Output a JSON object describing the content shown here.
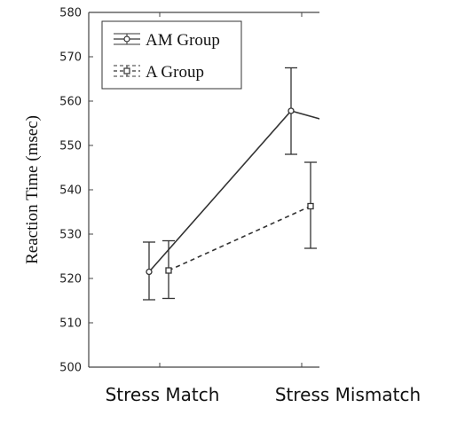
{
  "chart_data": {
    "type": "line",
    "title": "",
    "xlabel": "",
    "ylabel": "Reaction Time (msec)",
    "ylim": [
      500,
      580
    ],
    "yticks": [
      500,
      510,
      520,
      530,
      540,
      550,
      560,
      570,
      580
    ],
    "categories": [
      "Stress Match",
      "Stress Mismatch"
    ],
    "grid": false,
    "legend_position": "top-left",
    "series": [
      {
        "name": "AM Group",
        "marker": "circle",
        "line_style": "solid",
        "color": "#333333",
        "values": [
          521.5,
          557.8
        ],
        "error_low": [
          515.2,
          548.0
        ],
        "error_high": [
          528.2,
          567.5
        ]
      },
      {
        "name": "A Group",
        "marker": "square",
        "line_style": "dashed",
        "color": "#333333",
        "values": [
          521.8,
          536.3
        ],
        "error_low": [
          515.5,
          526.8
        ],
        "error_high": [
          528.5,
          546.2
        ]
      }
    ]
  }
}
